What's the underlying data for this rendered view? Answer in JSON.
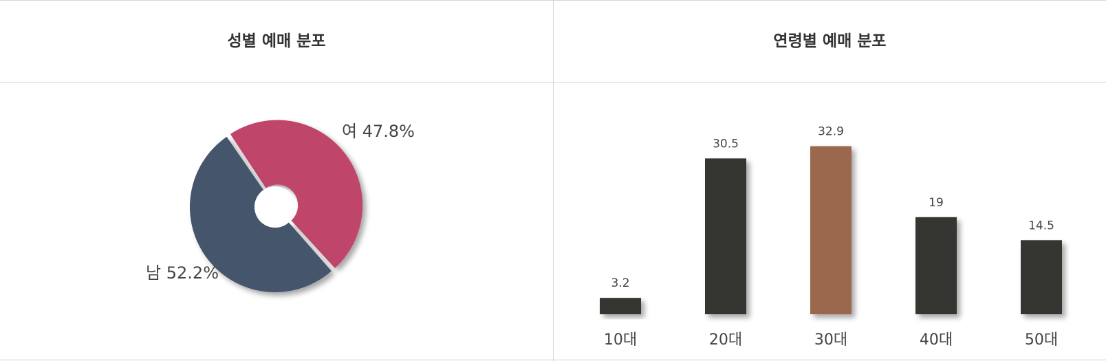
{
  "panels": {
    "gender_title": "성별 예매 분포",
    "age_title": "연령별 예매 분포"
  },
  "chart_data": [
    {
      "type": "pie",
      "title": "성별 예매 분포",
      "categories": [
        "여",
        "남"
      ],
      "values": [
        47.8,
        52.2
      ],
      "labels": [
        "여 47.8%",
        "남 52.2%"
      ],
      "colors": [
        "#c0456a",
        "#45546c"
      ],
      "donut": true
    },
    {
      "type": "bar",
      "title": "연령별 예매 분포",
      "categories": [
        "10대",
        "20대",
        "30대",
        "40대",
        "50대"
      ],
      "values": [
        3.2,
        30.5,
        32.9,
        19,
        14.5
      ],
      "value_labels": [
        "3.2",
        "30.5",
        "32.9",
        "19",
        "14.5"
      ],
      "colors": [
        "#353432",
        "#353432",
        "#9b684d",
        "#353432",
        "#353432"
      ],
      "highlight_index": 2
    }
  ]
}
